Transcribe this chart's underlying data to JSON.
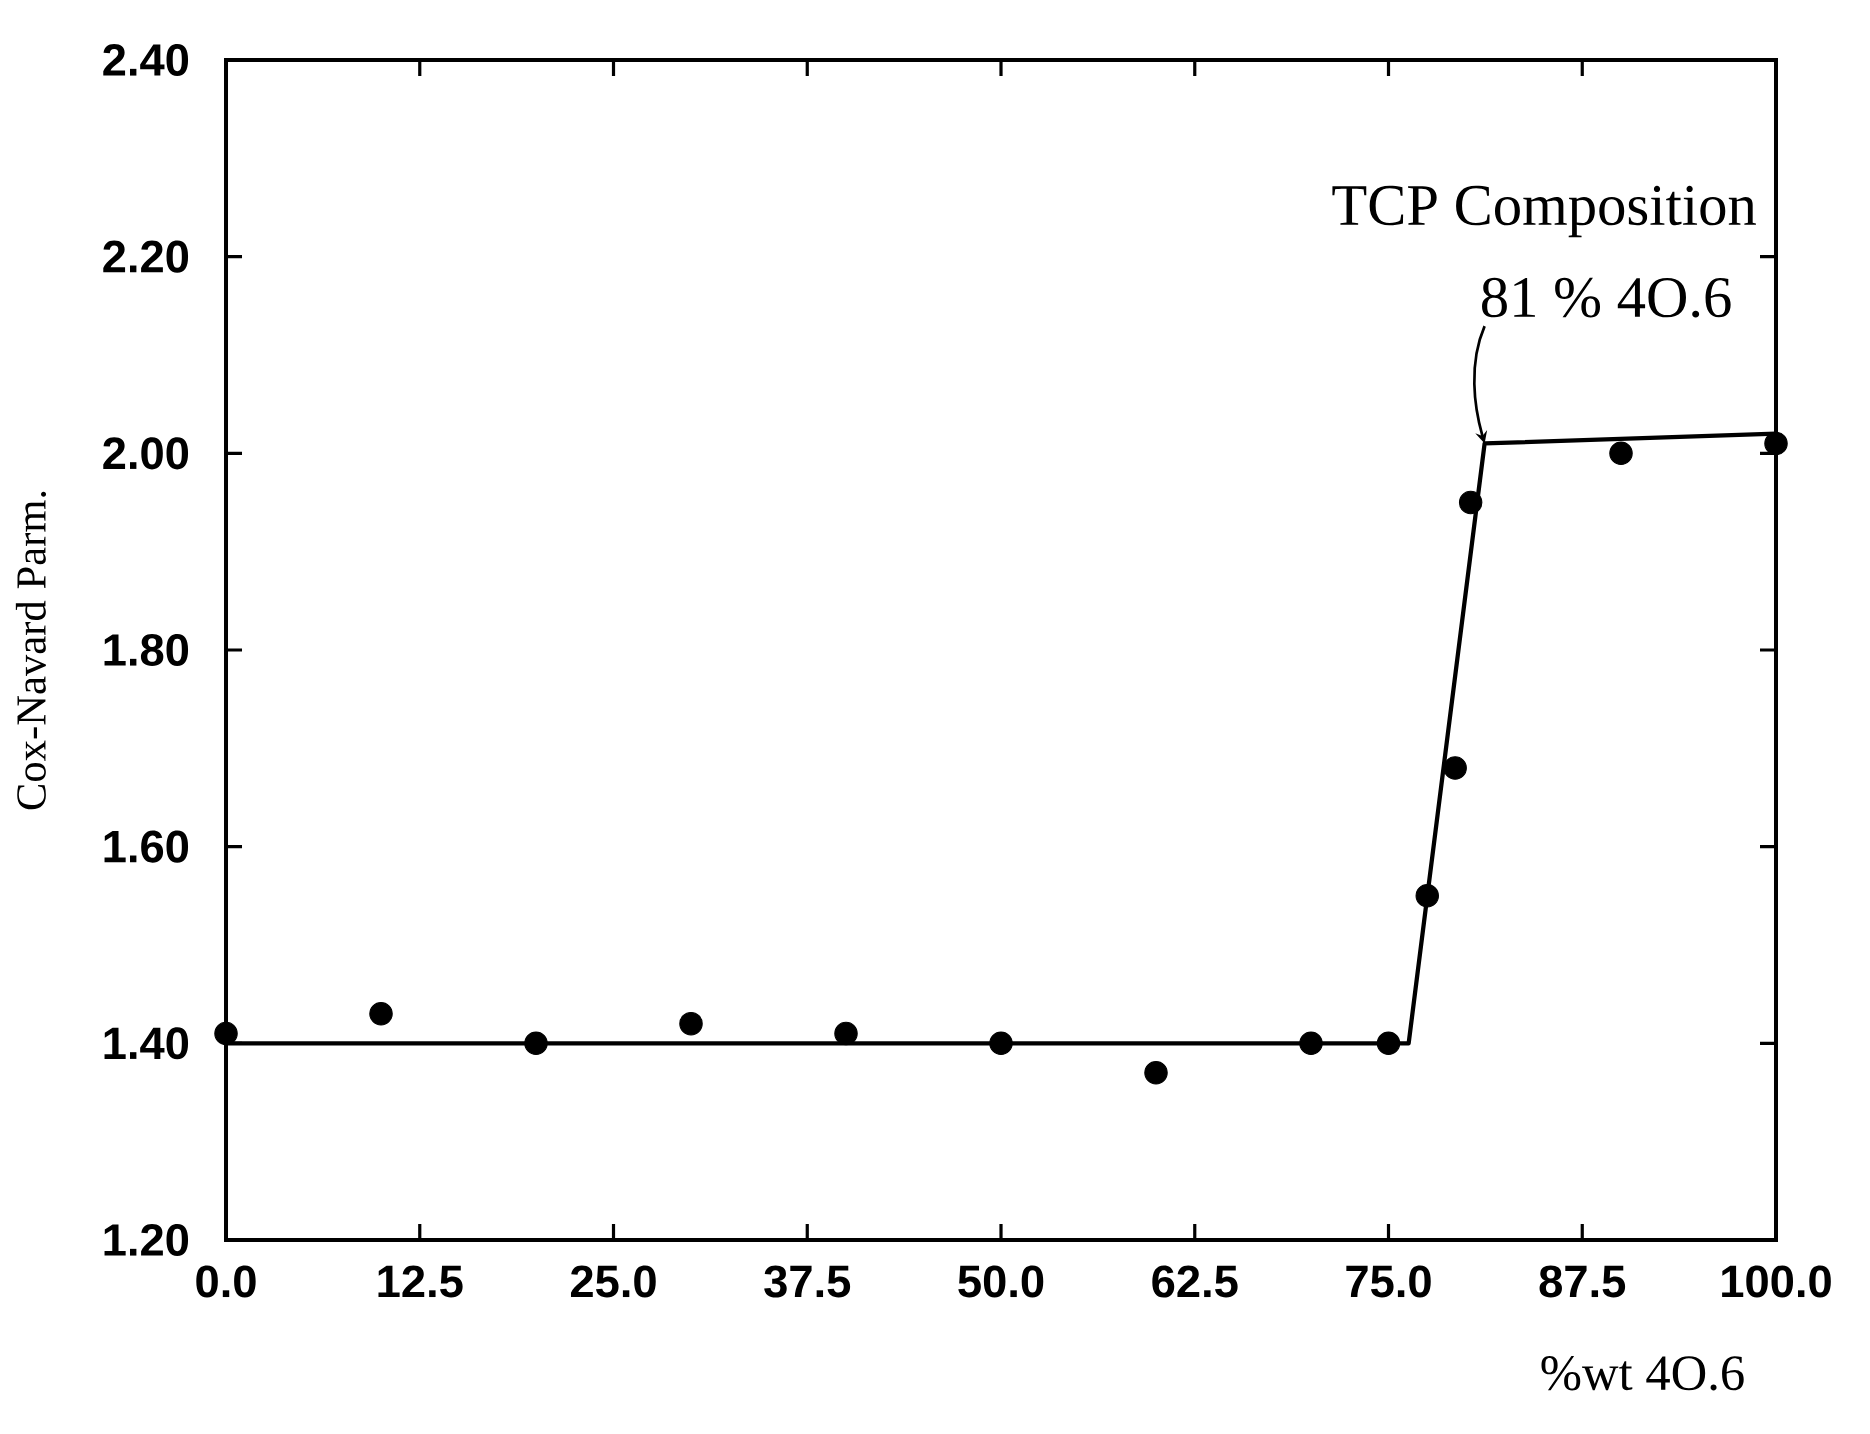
{
  "chart_data": {
    "type": "scatter",
    "xlabel": "%wt 4O.6",
    "ylabel": "Cox-Navard Parm.",
    "annotations": [
      "TCP Composition",
      {
        "text": "81 % 4O.6",
        "x": 81.2,
        "y": 2.01
      }
    ],
    "xlim": [
      0,
      100
    ],
    "ylim": [
      1.2,
      2.4
    ],
    "xticks": [
      {
        "value": 0,
        "label": "0.0"
      },
      {
        "value": 12.5,
        "label": "12.5"
      },
      {
        "value": 25,
        "label": "25.0"
      },
      {
        "value": 37.5,
        "label": "37.5"
      },
      {
        "value": 50,
        "label": "50.0"
      },
      {
        "value": 62.5,
        "label": "62.5"
      },
      {
        "value": 75,
        "label": "75.0"
      },
      {
        "value": 87.5,
        "label": "87.5"
      },
      {
        "value": 100,
        "label": "100.0"
      }
    ],
    "yticks": [
      {
        "value": 1.2,
        "label": "1.20"
      },
      {
        "value": 1.4,
        "label": "1.40"
      },
      {
        "value": 1.6,
        "label": "1.60"
      },
      {
        "value": 1.8,
        "label": "1.80"
      },
      {
        "value": 2.0,
        "label": "2.00"
      },
      {
        "value": 2.2,
        "label": "2.20"
      },
      {
        "value": 2.4,
        "label": "2.40"
      }
    ],
    "line_style": "solid",
    "series": [
      {
        "marker": "circle",
        "color": "#000000",
        "x": [
          0,
          10,
          20,
          30,
          40,
          50,
          60,
          70,
          75,
          77.5,
          79.3,
          80.3,
          90,
          100
        ],
        "values": [
          1.41,
          1.43,
          1.4,
          1.42,
          1.41,
          1.4,
          1.37,
          1.4,
          1.4,
          1.55,
          1.68,
          1.95,
          2.0,
          2.01
        ]
      },
      {
        "type": "line",
        "marker": "none",
        "color": "#000000",
        "x": [
          0,
          76.3,
          81.2,
          100
        ],
        "values": [
          1.4,
          1.4,
          2.01,
          2.02
        ]
      }
    ]
  }
}
